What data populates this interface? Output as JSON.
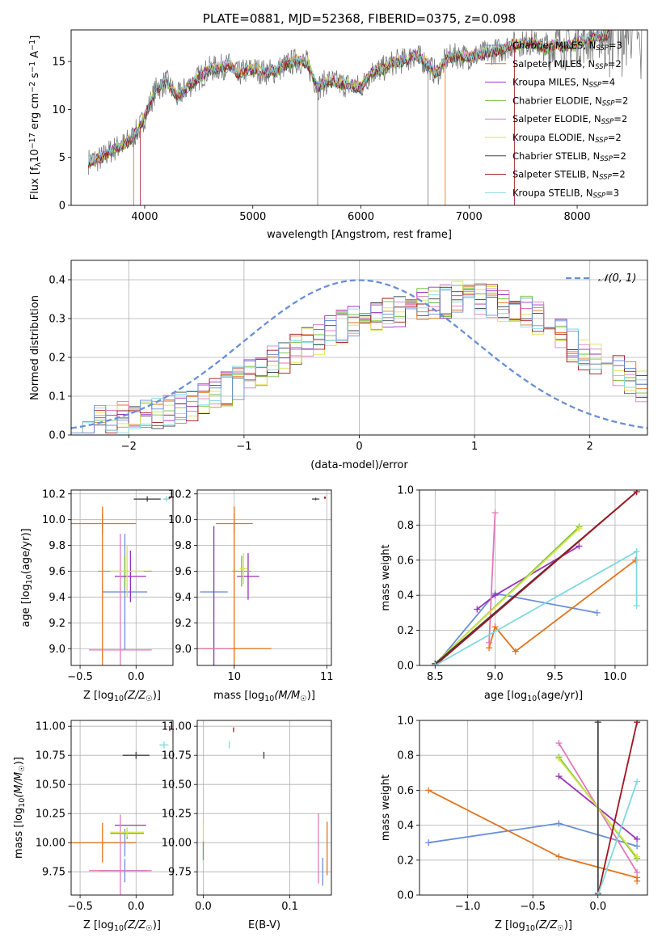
{
  "colors": {
    "blue": "#6a8fd8",
    "orange": "#e1741e",
    "purple": "#9a30b8",
    "green": "#6fbf3a",
    "pink": "#e07aba",
    "yellow": "#d9e34a",
    "darkgray": "#404040",
    "darkred": "#a0141e",
    "cyan": "#7fd9e0",
    "grayspec": "#7a7a7a",
    "grid": "#b0b0b0"
  },
  "chart_data": [
    {
      "id": "spectrum",
      "type": "line",
      "title": "PLATE=0881, MJD=52368, FIBERID=0375, z=0.098",
      "xlabel": "wavelength [Angstrom, rest frame]",
      "ylabel": "Flux [f",
      "ylabel_sub": "λ",
      "ylabel_rest": "10",
      "ylabel_sup1": "−17",
      "ylabel_tail": " erg cm",
      "ylabel_sup2": "−2",
      "ylabel_tail2": " s",
      "ylabel_sup3": "−1",
      "ylabel_tail3": " A",
      "ylabel_sup4": "−1",
      "ylabel_end": "]",
      "xlim": [
        3320,
        8650
      ],
      "ylim": [
        0,
        18.3
      ],
      "xticks": [
        "4000",
        "5000",
        "6000",
        "7000",
        "8000"
      ],
      "xtick_values": [
        4000,
        5000,
        6000,
        7000,
        8000
      ],
      "yticks": [
        "0",
        "5",
        "10",
        "15"
      ],
      "ytick_values": [
        0,
        5,
        10,
        15
      ],
      "grid": false,
      "continuum": {
        "x": [
          3480,
          3600,
          3700,
          3800,
          3880,
          3960,
          4020,
          4100,
          4200,
          4300,
          4400,
          4500,
          4600,
          4700,
          4800,
          4860,
          4900,
          5000,
          5100,
          5200,
          5300,
          5400,
          5500,
          5600,
          5700,
          5800,
          5900,
          6000,
          6100,
          6200,
          6300,
          6400,
          6500,
          6600,
          6700,
          6800,
          6900,
          7000,
          7100,
          7200,
          7300,
          7400,
          7500,
          7600,
          7700,
          7800,
          7900,
          8000,
          8100,
          8200,
          8300
        ],
        "y": [
          4.6,
          4.9,
          5.8,
          6.3,
          7.0,
          8.2,
          9.8,
          12.0,
          12.9,
          11.3,
          12.4,
          13.3,
          14.2,
          14.4,
          14.6,
          13.6,
          13.9,
          14.2,
          13.9,
          14.0,
          14.6,
          15.1,
          14.9,
          12.3,
          13.0,
          12.7,
          12.5,
          12.3,
          13.9,
          14.2,
          14.9,
          15.1,
          15.7,
          14.9,
          13.7,
          15.4,
          15.6,
          15.5,
          15.7,
          16.0,
          16.2,
          16.8,
          16.9,
          17.0,
          16.3,
          16.8,
          16.5,
          16.9,
          17.3,
          17.6,
          17.9
        ]
      },
      "legend_location": "upper right",
      "series": [
        {
          "name": "Chabrier MILES, N",
          "sub": "SSP",
          "suffix": "=3",
          "color": "blue"
        },
        {
          "name": "Salpeter MILES, N",
          "sub": "SSP",
          "suffix": "=2",
          "color": "orange"
        },
        {
          "name": "Kroupa MILES, N",
          "sub": "SSP",
          "suffix": "=4",
          "color": "purple"
        },
        {
          "name": "Chabrier ELODIE, N",
          "sub": "SSP",
          "suffix": "=2",
          "color": "green"
        },
        {
          "name": "Salpeter ELODIE, N",
          "sub": "SSP",
          "suffix": "=2",
          "color": "pink"
        },
        {
          "name": "Kroupa ELODIE, N",
          "sub": "SSP",
          "suffix": "=2",
          "color": "yellow"
        },
        {
          "name": "Chabrier STELIB, N",
          "sub": "SSP",
          "suffix": "=2",
          "color": "darkgray"
        },
        {
          "name": "Salpeter STELIB, N",
          "sub": "SSP",
          "suffix": "=2",
          "color": "darkred"
        },
        {
          "name": "Kroupa STELIB, N",
          "sub": "SSP",
          "suffix": "=3",
          "color": "cyan"
        }
      ]
    },
    {
      "id": "residuals",
      "type": "line",
      "xlabel": "(data-model)/error",
      "ylabel": "Normed distribution",
      "xlim": [
        -2.5,
        2.5
      ],
      "ylim": [
        0,
        0.45
      ],
      "xticks": [
        "−2",
        "−1",
        "0",
        "1",
        "2"
      ],
      "xtick_values": [
        -2,
        -1,
        0,
        1,
        2
      ],
      "yticks": [
        "0.0",
        "0.1",
        "0.2",
        "0.3",
        "0.4"
      ],
      "ytick_values": [
        0,
        0.1,
        0.2,
        0.3,
        0.4
      ],
      "grid": true,
      "legend": {
        "label": "𝒩(0, 1)",
        "location": "upper right",
        "color": "blue"
      },
      "hist_bin_width": 0.1,
      "hist_base": {
        "x": [
          -2.5,
          -2.0,
          -1.5,
          -1.0,
          -0.5,
          0.0,
          0.5,
          1.0,
          1.5,
          2.0,
          2.5
        ],
        "y": [
          0.02,
          0.045,
          0.07,
          0.14,
          0.23,
          0.3,
          0.33,
          0.36,
          0.31,
          0.2,
          0.12
        ]
      },
      "hist_series_colors": [
        "darkgray",
        "orange",
        "green",
        "purple",
        "pink",
        "yellow",
        "darkred",
        "cyan",
        "blue"
      ]
    },
    {
      "id": "age-vs-Z",
      "type": "scatter",
      "xlabel": "Z [log",
      "xlabel_sub": "10",
      "xlabel_mid": "(Z/Z",
      "xlabel_sub2": "☉",
      "xlabel_end": ")]",
      "ylabel": "age  [log",
      "ylabel_sub": "10",
      "ylabel_end": "(age/yr)]",
      "xlim": [
        -0.58,
        0.33
      ],
      "ylim": [
        8.87,
        10.23
      ],
      "xticks": [
        "−0.5",
        "0.0"
      ],
      "xtick_values": [
        -0.5,
        0.0
      ],
      "yticks": [
        "9.0",
        "9.2",
        "9.4",
        "9.6",
        "9.8",
        "10.0",
        "10.2"
      ],
      "ytick_values": [
        9.0,
        9.2,
        9.4,
        9.6,
        9.8,
        10.0,
        10.2
      ],
      "grid": true,
      "points": [
        {
          "x": -0.3,
          "y": 9.97,
          "xerr": 0.3,
          "yerr": 0.08,
          "color": "orange"
        },
        {
          "x": -0.3,
          "y": 9.0,
          "xerr": 0.0,
          "yerr": 1.1,
          "color": "orange"
        },
        {
          "x": -0.1,
          "y": 9.44,
          "xerr": 0.2,
          "yerr": 0.45,
          "color": "blue"
        },
        {
          "x": -0.1,
          "y": 9.6,
          "xerr": 0.24,
          "yerr": 0.12,
          "color": "green"
        },
        {
          "x": -0.05,
          "y": 9.56,
          "xerr": 0.14,
          "yerr": 0.2,
          "color": "purple"
        },
        {
          "x": -0.14,
          "y": 8.99,
          "xerr": 0.28,
          "yerr": 0.9,
          "color": "pink"
        },
        {
          "x": -0.08,
          "y": 9.6,
          "xerr": 0.15,
          "yerr": 0.2,
          "color": "yellow"
        },
        {
          "x": 0.1,
          "y": 10.16,
          "xerr": 0.12,
          "yerr": 0.02,
          "color": "darkgray"
        },
        {
          "x": 0.27,
          "y": 10.16,
          "xerr": 0.03,
          "yerr": 0.02,
          "color": "cyan"
        },
        {
          "x": 0.3,
          "y": 10.17,
          "xerr": 0.01,
          "yerr": 0.01,
          "color": "darkred"
        }
      ]
    },
    {
      "id": "age-vs-mass",
      "type": "scatter",
      "xlabel": "mass [log",
      "xlabel_sub": "10",
      "xlabel_mid": "(M/M",
      "xlabel_sub2": "☉",
      "xlabel_end": ")]",
      "xlim": [
        9.6,
        11.05
      ],
      "ylim": [
        8.87,
        10.23
      ],
      "xticks": [
        "10",
        "11"
      ],
      "xtick_values": [
        10,
        11
      ],
      "yticks": [
        "9.0",
        "9.2",
        "9.4",
        "9.6",
        "9.8",
        "10.0",
        "10.2"
      ],
      "ytick_values": [
        9.0,
        9.2,
        9.4,
        9.6,
        9.8,
        10.0,
        10.2
      ],
      "grid": true,
      "points": [
        {
          "x": 10.0,
          "y": 9.97,
          "xerr": 0.2,
          "yerr": 0.08,
          "color": "orange"
        },
        {
          "x": 10.0,
          "y": 9.0,
          "xerr": 0.4,
          "yerr": 1.1,
          "color": "orange"
        },
        {
          "x": 9.78,
          "y": 9.44,
          "xerr": 0.15,
          "yerr": 0.0,
          "color": "blue"
        },
        {
          "x": 9.78,
          "y": 9.4,
          "xerr": 0.0,
          "yerr": 0.55,
          "color": "purple"
        },
        {
          "x": 10.15,
          "y": 9.56,
          "xerr": 0.12,
          "yerr": 0.18,
          "color": "purple"
        },
        {
          "x": 10.08,
          "y": 9.6,
          "xerr": 0.1,
          "yerr": 0.12,
          "color": "green"
        },
        {
          "x": 10.1,
          "y": 9.62,
          "xerr": 0.04,
          "yerr": 0.12,
          "color": "yellow"
        },
        {
          "x": 9.78,
          "y": 9.0,
          "xerr": 0.18,
          "yerr": 0.0,
          "color": "pink"
        },
        {
          "x": 10.88,
          "y": 10.16,
          "xerr": 0.04,
          "yerr": 0.01,
          "color": "darkgray"
        },
        {
          "x": 10.98,
          "y": 10.17,
          "xerr": 0.01,
          "yerr": 0.01,
          "color": "darkred"
        }
      ]
    },
    {
      "id": "massweight-vs-age",
      "type": "line",
      "xlabel": "age  [log",
      "xlabel_sub": "10",
      "xlabel_end": "(age/yr)]",
      "ylabel": "mass weight",
      "xlim": [
        8.37,
        10.27
      ],
      "ylim": [
        0,
        1
      ],
      "xticks": [
        "8.5",
        "9.0",
        "9.5",
        "10.0"
      ],
      "xtick_values": [
        8.5,
        9.0,
        9.5,
        10.0
      ],
      "yticks": [
        "0.0",
        "0.2",
        "0.4",
        "0.6",
        "0.8",
        "1.0"
      ],
      "ytick_values": [
        0,
        0.2,
        0.4,
        0.6,
        0.8,
        1.0
      ],
      "grid": true,
      "series": [
        {
          "color": "blue",
          "x": [
            8.5,
            9.0,
            9.85
          ],
          "y": [
            0.0,
            0.41,
            0.3
          ]
        },
        {
          "color": "orange",
          "x": [
            8.95,
            9.0,
            9.17,
            10.17
          ],
          "y": [
            0.1,
            0.22,
            0.08,
            0.6
          ]
        },
        {
          "color": "purple",
          "x": [
            8.85,
            9.0,
            9.7
          ],
          "y": [
            0.32,
            0.4,
            0.68
          ]
        },
        {
          "color": "green",
          "x": [
            8.5,
            9.7
          ],
          "y": [
            0.01,
            0.79
          ]
        },
        {
          "color": "pink",
          "x": [
            8.95,
            9.0
          ],
          "y": [
            0.13,
            0.87
          ]
        },
        {
          "color": "yellow",
          "x": [
            8.5,
            9.7
          ],
          "y": [
            0.01,
            0.78
          ]
        },
        {
          "color": "darkgray",
          "x": [
            8.5,
            10.18
          ],
          "y": [
            0.01,
            0.99
          ]
        },
        {
          "color": "darkred",
          "x": [
            8.5,
            10.18
          ],
          "y": [
            0.0,
            0.99
          ]
        },
        {
          "color": "cyan",
          "x": [
            8.5,
            10.18,
            10.18
          ],
          "y": [
            0.0,
            0.65,
            0.34
          ]
        }
      ]
    },
    {
      "id": "mass-vs-Z",
      "type": "scatter",
      "xlabel": "Z [log",
      "xlabel_sub": "10",
      "xlabel_mid": "(Z/Z",
      "xlabel_sub2": "☉",
      "xlabel_end": ")]",
      "ylabel": "mass [log",
      "ylabel_sub": "10",
      "ylabel_mid": "(M/M",
      "ylabel_sub2": "☉",
      "ylabel_end": ")]",
      "xlim": [
        -0.58,
        0.33
      ],
      "ylim": [
        9.55,
        11.05
      ],
      "xticks": [
        "−0.5",
        "0.0"
      ],
      "xtick_values": [
        -0.5,
        0.0
      ],
      "yticks": [
        "9.75",
        "10.00",
        "10.25",
        "10.50",
        "10.75",
        "11.00"
      ],
      "ytick_values": [
        9.75,
        10.0,
        10.25,
        10.5,
        10.75,
        11.0
      ],
      "grid": true,
      "points": [
        {
          "x": -0.3,
          "y": 10.0,
          "xerr": 0.3,
          "yerr": 0.17,
          "color": "orange"
        },
        {
          "x": -0.3,
          "y": 9.76,
          "xerr": 0.0,
          "yerr": 0.0,
          "color": "orange"
        },
        {
          "x": -0.1,
          "y": 9.76,
          "xerr": 0.2,
          "yerr": 0.1,
          "color": "blue"
        },
        {
          "x": -0.1,
          "y": 10.0,
          "xerr": 0.0,
          "yerr": 0.12,
          "color": "blue"
        },
        {
          "x": -0.05,
          "y": 10.15,
          "xerr": 0.14,
          "yerr": 0.0,
          "color": "purple"
        },
        {
          "x": -0.08,
          "y": 10.08,
          "xerr": 0.15,
          "yerr": 0.05,
          "color": "green"
        },
        {
          "x": -0.14,
          "y": 9.76,
          "xerr": 0.28,
          "yerr": 0.48,
          "color": "pink"
        },
        {
          "x": -0.08,
          "y": 10.09,
          "xerr": 0.15,
          "yerr": 0.04,
          "color": "yellow"
        },
        {
          "x": 0.0,
          "y": 10.75,
          "xerr": 0.12,
          "yerr": 0.03,
          "color": "darkgray"
        },
        {
          "x": 0.25,
          "y": 10.84,
          "xerr": 0.04,
          "yerr": 0.03,
          "color": "cyan"
        },
        {
          "x": 0.3,
          "y": 10.98,
          "xerr": 0.0,
          "yerr": 0.02,
          "color": "darkred"
        }
      ]
    },
    {
      "id": "mass-vs-EBV",
      "type": "scatter",
      "xlabel": "E(B-V)",
      "xlim": [
        -0.007,
        0.148
      ],
      "ylim": [
        9.55,
        11.05
      ],
      "xticks": [
        "0.0",
        "0.1"
      ],
      "xtick_values": [
        0.0,
        0.1
      ],
      "yticks": [
        "9.75",
        "10.00",
        "10.25",
        "10.50",
        "10.75",
        "11.00"
      ],
      "ytick_values": [
        9.75,
        10.0,
        10.25,
        10.5,
        10.75,
        11.0
      ],
      "grid": true,
      "points": [
        {
          "x": 0.0,
          "y": 10.0,
          "xerr": 0.0,
          "yerr": 0.17,
          "color": "yellow"
        },
        {
          "x": 0.0,
          "y": 9.93,
          "xerr": 0.0,
          "yerr": 0.08,
          "color": "blue"
        },
        {
          "x": 0.03,
          "y": 10.84,
          "xerr": 0.0,
          "yerr": 0.03,
          "color": "cyan"
        },
        {
          "x": 0.035,
          "y": 10.97,
          "xerr": 0.0,
          "yerr": 0.02,
          "color": "darkred"
        },
        {
          "x": 0.07,
          "y": 10.75,
          "xerr": 0.0,
          "yerr": 0.03,
          "color": "darkgray"
        },
        {
          "x": 0.133,
          "y": 9.95,
          "xerr": 0.0,
          "yerr": 0.3,
          "color": "pink"
        },
        {
          "x": 0.138,
          "y": 9.75,
          "xerr": 0.0,
          "yerr": 0.12,
          "color": "blue"
        },
        {
          "x": 0.143,
          "y": 9.95,
          "xerr": 0.0,
          "yerr": 0.23,
          "color": "orange"
        }
      ]
    },
    {
      "id": "massweight-vs-Z",
      "type": "line",
      "xlabel": "Z [log",
      "xlabel_sub": "10",
      "xlabel_mid": "(Z/Z",
      "xlabel_sub2": "☉",
      "xlabel_end": ")]",
      "ylabel": "mass weight",
      "xlim": [
        -1.37,
        0.38
      ],
      "ylim": [
        0,
        1
      ],
      "xticks": [
        "−1.0",
        "−0.5",
        "0.0"
      ],
      "xtick_values": [
        -1.0,
        -0.5,
        0.0
      ],
      "yticks": [
        "0.0",
        "0.2",
        "0.4",
        "0.6",
        "0.8",
        "1.0"
      ],
      "ytick_values": [
        0,
        0.2,
        0.4,
        0.6,
        0.8,
        1.0
      ],
      "grid": true,
      "series": [
        {
          "color": "blue",
          "x": [
            -1.3,
            -0.3,
            0.3
          ],
          "y": [
            0.3,
            0.41,
            0.28
          ]
        },
        {
          "color": "orange",
          "x": [
            -1.3,
            -0.3,
            0.3,
            0.3
          ],
          "y": [
            0.6,
            0.22,
            0.1,
            0.08
          ]
        },
        {
          "color": "purple",
          "x": [
            -0.3,
            0.3
          ],
          "y": [
            0.68,
            0.32
          ]
        },
        {
          "color": "green",
          "x": [
            -0.3,
            0.3
          ],
          "y": [
            0.79,
            0.21
          ]
        },
        {
          "color": "pink",
          "x": [
            -0.3,
            0.3
          ],
          "y": [
            0.87,
            0.13
          ]
        },
        {
          "color": "yellow",
          "x": [
            -0.3,
            0.3
          ],
          "y": [
            0.78,
            0.22
          ]
        },
        {
          "color": "darkgray",
          "x": [
            0.0,
            0.0
          ],
          "y": [
            0.01,
            0.99
          ]
        },
        {
          "color": "darkred",
          "x": [
            0.0,
            0.3
          ],
          "y": [
            0.0,
            0.99
          ]
        },
        {
          "color": "cyan",
          "x": [
            0.0,
            0.3
          ],
          "y": [
            0.0,
            0.65
          ]
        }
      ]
    }
  ]
}
